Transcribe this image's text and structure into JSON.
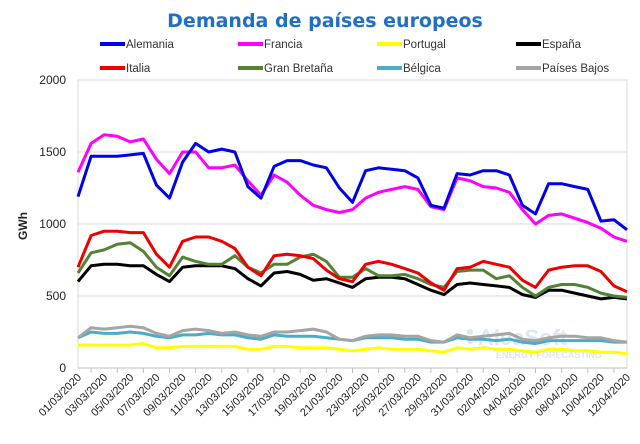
{
  "chart_data": {
    "type": "line",
    "title": "Demanda de países europeos",
    "ylabel": "GWh",
    "xlabel": "",
    "ylim": [
      0,
      2000
    ],
    "yticks": [
      0,
      500,
      1000,
      1500,
      2000
    ],
    "grid": true,
    "legend_placement": "top",
    "watermark": "AleaSoft ENERGY FORECASTING",
    "x": [
      "01/03/2020",
      "02/03/2020",
      "03/03/2020",
      "04/03/2020",
      "05/03/2020",
      "06/03/2020",
      "07/03/2020",
      "08/03/2020",
      "09/03/2020",
      "10/03/2020",
      "11/03/2020",
      "12/03/2020",
      "13/03/2020",
      "14/03/2020",
      "15/03/2020",
      "16/03/2020",
      "17/03/2020",
      "18/03/2020",
      "19/03/2020",
      "20/03/2020",
      "21/03/2020",
      "22/03/2020",
      "23/03/2020",
      "24/03/2020",
      "25/03/2020",
      "26/03/2020",
      "27/03/2020",
      "28/03/2020",
      "29/03/2020",
      "30/03/2020",
      "31/03/2020",
      "01/04/2020",
      "02/04/2020",
      "03/04/2020",
      "04/04/2020",
      "05/04/2020",
      "06/04/2020",
      "07/04/2020",
      "08/04/2020",
      "09/04/2020",
      "10/04/2020",
      "11/04/2020",
      "12/04/2020"
    ],
    "xtick_labels": [
      "01/03/2020",
      "03/03/2020",
      "05/03/2020",
      "07/03/2020",
      "09/03/2020",
      "11/03/2020",
      "13/03/2020",
      "15/03/2020",
      "17/03/2020",
      "19/03/2020",
      "21/03/2020",
      "23/03/2020",
      "25/03/2020",
      "27/03/2020",
      "29/03/2020",
      "31/03/2020",
      "02/04/2020",
      "04/04/2020",
      "06/04/2020",
      "08/04/2020",
      "10/04/2020",
      "12/04/2020"
    ],
    "series": [
      {
        "name": "Alemania",
        "color": "#0000ee",
        "values": [
          1190,
          1470,
          1470,
          1470,
          1480,
          1490,
          1270,
          1180,
          1430,
          1560,
          1500,
          1520,
          1500,
          1260,
          1180,
          1400,
          1440,
          1440,
          1410,
          1390,
          1250,
          1150,
          1370,
          1390,
          1380,
          1370,
          1320,
          1130,
          1110,
          1350,
          1340,
          1370,
          1370,
          1340,
          1130,
          1070,
          1280,
          1280,
          1260,
          1240,
          1020,
          1030,
          960
        ]
      },
      {
        "name": "Francia",
        "color": "#ff00ff",
        "values": [
          1360,
          1560,
          1620,
          1610,
          1570,
          1590,
          1450,
          1350,
          1500,
          1500,
          1390,
          1390,
          1410,
          1300,
          1200,
          1340,
          1290,
          1200,
          1130,
          1100,
          1080,
          1100,
          1180,
          1220,
          1240,
          1260,
          1240,
          1120,
          1100,
          1320,
          1300,
          1260,
          1250,
          1220,
          1100,
          1000,
          1060,
          1070,
          1040,
          1010,
          970,
          910,
          880
        ]
      },
      {
        "name": "Portugal",
        "color": "#ffff00",
        "values": [
          160,
          160,
          160,
          160,
          160,
          170,
          140,
          140,
          150,
          150,
          150,
          150,
          150,
          130,
          130,
          150,
          150,
          140,
          140,
          140,
          130,
          120,
          130,
          140,
          130,
          130,
          130,
          120,
          110,
          140,
          130,
          140,
          130,
          130,
          120,
          110,
          130,
          130,
          120,
          120,
          110,
          110,
          100
        ]
      },
      {
        "name": "España",
        "color": "#000000",
        "values": [
          600,
          710,
          720,
          720,
          710,
          710,
          650,
          600,
          700,
          710,
          710,
          710,
          690,
          620,
          570,
          660,
          670,
          650,
          610,
          620,
          590,
          560,
          620,
          630,
          630,
          620,
          580,
          540,
          510,
          580,
          590,
          580,
          570,
          560,
          510,
          490,
          540,
          540,
          520,
          500,
          480,
          490,
          480
        ]
      },
      {
        "name": "Italia",
        "color": "#ee0000",
        "values": [
          700,
          920,
          950,
          950,
          940,
          940,
          790,
          700,
          880,
          910,
          910,
          880,
          830,
          700,
          640,
          780,
          790,
          780,
          760,
          680,
          620,
          600,
          720,
          740,
          720,
          690,
          660,
          590,
          540,
          690,
          700,
          740,
          720,
          700,
          610,
          560,
          680,
          700,
          710,
          710,
          670,
          570,
          530
        ]
      },
      {
        "name": "Gran Bretaña",
        "color": "#548235",
        "values": [
          660,
          800,
          820,
          860,
          870,
          810,
          700,
          640,
          770,
          740,
          720,
          720,
          780,
          700,
          660,
          720,
          720,
          770,
          790,
          740,
          630,
          630,
          690,
          640,
          640,
          650,
          620,
          580,
          560,
          670,
          680,
          680,
          620,
          640,
          560,
          500,
          560,
          580,
          580,
          560,
          520,
          500,
          490
        ]
      },
      {
        "name": "Bélgica",
        "color": "#4bacc6",
        "values": [
          210,
          250,
          240,
          240,
          250,
          240,
          220,
          210,
          230,
          230,
          240,
          230,
          230,
          210,
          200,
          230,
          220,
          220,
          220,
          210,
          200,
          190,
          210,
          210,
          210,
          200,
          200,
          180,
          180,
          210,
          200,
          200,
          190,
          200,
          180,
          170,
          190,
          190,
          190,
          190,
          190,
          180,
          180
        ]
      },
      {
        "name": "Países Bajos",
        "color": "#a5a5a5",
        "values": [
          210,
          280,
          270,
          280,
          290,
          280,
          240,
          220,
          260,
          270,
          260,
          240,
          250,
          230,
          220,
          250,
          250,
          260,
          270,
          250,
          200,
          190,
          220,
          230,
          230,
          220,
          220,
          190,
          180,
          230,
          210,
          220,
          230,
          240,
          200,
          190,
          210,
          220,
          220,
          210,
          210,
          190,
          180
        ]
      }
    ]
  }
}
